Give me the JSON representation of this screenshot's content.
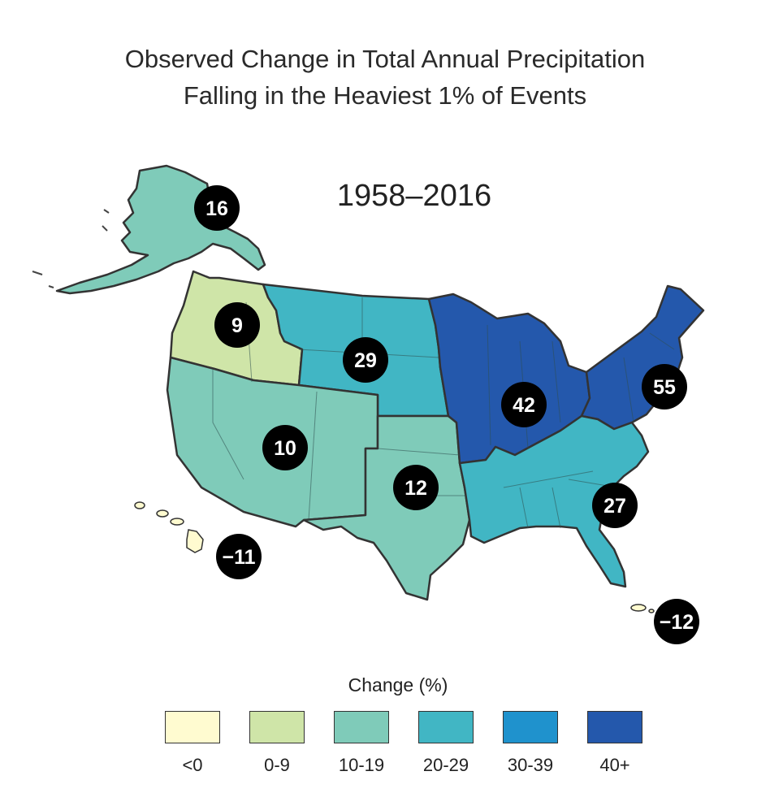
{
  "title": {
    "line1": "Observed Change in Total Annual Precipitation",
    "line2": "Falling in the Heaviest 1% of Events"
  },
  "period": "1958–2016",
  "regions": [
    {
      "name": "Alaska",
      "value": "16",
      "bin": "10-19"
    },
    {
      "name": "Northwest",
      "value": "9",
      "bin": "0-9"
    },
    {
      "name": "Northern Great Plains",
      "value": "29",
      "bin": "20-29"
    },
    {
      "name": "Southwest",
      "value": "10",
      "bin": "10-19"
    },
    {
      "name": "Southern Great Plains",
      "value": "12",
      "bin": "10-19"
    },
    {
      "name": "Midwest",
      "value": "42",
      "bin": "40+"
    },
    {
      "name": "Northeast",
      "value": "55",
      "bin": "40+"
    },
    {
      "name": "Southeast",
      "value": "27",
      "bin": "20-29"
    },
    {
      "name": "Hawaii",
      "value": "−11",
      "bin": "<0"
    },
    {
      "name": "Caribbean",
      "value": "−12",
      "bin": "<0"
    }
  ],
  "legend": {
    "title": "Change (%)",
    "items": [
      {
        "label": "<0",
        "color": "#fffbd0"
      },
      {
        "label": "0-9",
        "color": "#cfe5a8"
      },
      {
        "label": "10-19",
        "color": "#7fcbb9"
      },
      {
        "label": "20-29",
        "color": "#41b6c4"
      },
      {
        "label": "30-39",
        "color": "#1f92cd"
      },
      {
        "label": "40+",
        "color": "#2458ac"
      }
    ]
  },
  "colors": {
    "border": "#333333",
    "badge": "#000000"
  }
}
